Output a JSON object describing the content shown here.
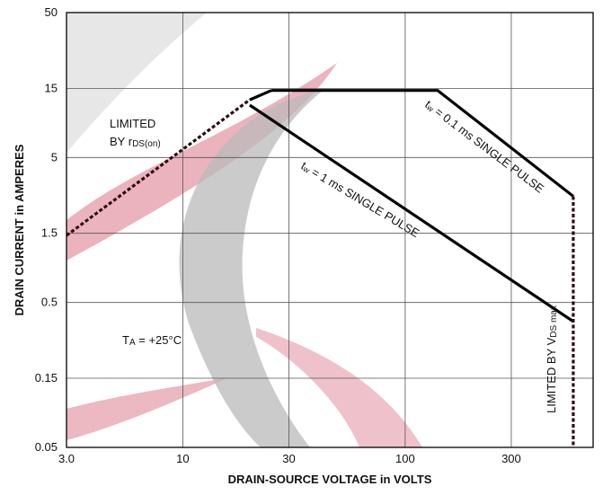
{
  "chart_data": {
    "type": "line",
    "xscale": "log",
    "yscale": "log",
    "xlim": [
      3.0,
      700
    ],
    "ylim": [
      0.05,
      50
    ],
    "grid": true,
    "xlabel": "DRAIN-SOURCE VOLTAGE in VOLTS",
    "ylabel": "DRAIN CURRENT in AMPERES",
    "x_ticks": [
      "3.0",
      "10",
      "30",
      "100",
      "300"
    ],
    "x_tick_values": [
      3.0,
      10,
      30,
      100,
      300
    ],
    "y_ticks": [
      "50",
      "15",
      "5",
      "1.5",
      "0.5",
      "0.15",
      "0.05"
    ],
    "y_tick_values": [
      50,
      15,
      5,
      1.5,
      0.5,
      0.15,
      0.05
    ],
    "series": [
      {
        "style": "dashed",
        "x": [
          3.0,
          20
        ],
        "y": [
          1.45,
          12.5
        ]
      },
      {
        "style": "solid",
        "x": [
          20,
          25
        ],
        "y": [
          12.5,
          14.5
        ]
      },
      {
        "style": "solid",
        "x": [
          25,
          140,
          570
        ],
        "y": [
          14.5,
          14.5,
          2.7
        ]
      },
      {
        "style": "solid",
        "x": [
          20,
          570
        ],
        "y": [
          11.5,
          0.37
        ]
      },
      {
        "style": "dashed",
        "x": [
          570,
          570
        ],
        "y": [
          2.7,
          0.05
        ]
      }
    ],
    "annotations": {
      "limited_rds_line1": "LIMITED",
      "limited_rds_line2": "BY r",
      "limited_rds_sub": "DS(on)",
      "ta_prefix": "T",
      "ta_sub": "A",
      "ta_value": " = +25°C",
      "pulse_01_prefix": "t",
      "pulse_01_sub": "w",
      "pulse_01_text": " = 0.1 ms SINGLE PULSE",
      "pulse_1_prefix": "t",
      "pulse_1_sub": "w",
      "pulse_1_text": " = 1 ms SINGLE PULSE",
      "vds_limit_text": "LIMITED BY V",
      "vds_limit_sub": "DS max"
    }
  }
}
